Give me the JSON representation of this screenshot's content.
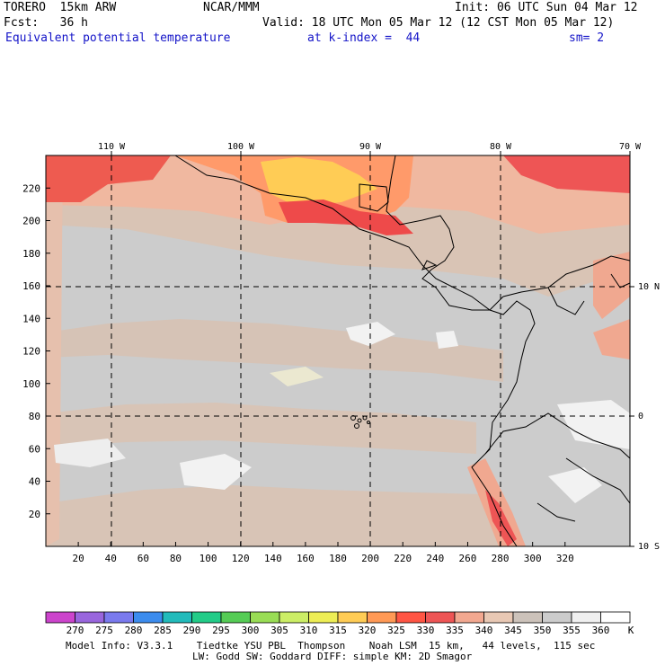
{
  "header": {
    "model": "TORERO  15km ARW",
    "org": "NCAR/MMM",
    "init": "Init: 06 UTC Sun 04 Mar 12",
    "fcst": "Fcst:   36 h",
    "valid": "Valid: 18 UTC Mon 05 Mar 12 (12 CST Mon 05 Mar 12)",
    "field": "Equivalent potential temperature",
    "level": "at k-index =  44",
    "smooth": "sm= 2"
  },
  "map": {
    "lon_labels": [
      "110 W",
      "100 W",
      "90 W",
      "80 W",
      "70 W"
    ],
    "lat_labels": [
      "10 N",
      "0",
      "10 S"
    ],
    "x_ticks": [
      "20",
      "40",
      "60",
      "80",
      "100",
      "120",
      "140",
      "160",
      "180",
      "200",
      "220",
      "240",
      "260",
      "280",
      "300",
      "320"
    ],
    "y_ticks": [
      "20",
      "40",
      "60",
      "80",
      "100",
      "120",
      "140",
      "160",
      "180",
      "200",
      "220"
    ]
  },
  "legend": {
    "values": [
      "270",
      "275",
      "280",
      "285",
      "290",
      "295",
      "300",
      "305",
      "310",
      "315",
      "320",
      "325",
      "330",
      "335",
      "340",
      "345",
      "350",
      "355",
      "360"
    ],
    "unit": "K",
    "colors": [
      "#cc44cc",
      "#9966dd",
      "#7a7aee",
      "#3c8cee",
      "#22bbbb",
      "#22cc88",
      "#55cc55",
      "#99dd55",
      "#ccee66",
      "#eeee55",
      "#ffcc55",
      "#ff9955",
      "#ff5544",
      "#ee5555",
      "#f2a890",
      "#e8c8b4",
      "#ccc2ba",
      "#cccccc",
      "#f0f0f0",
      "#ffffff"
    ]
  },
  "footer": {
    "line1": "Model Info: V3.3.1    Tiedtke YSU PBL  Thompson    Noah LSM  15 km,   44 levels,  115 sec",
    "line2": "LW: Godd SW: Goddard DIFF: simple KM: 2D Smagor"
  }
}
